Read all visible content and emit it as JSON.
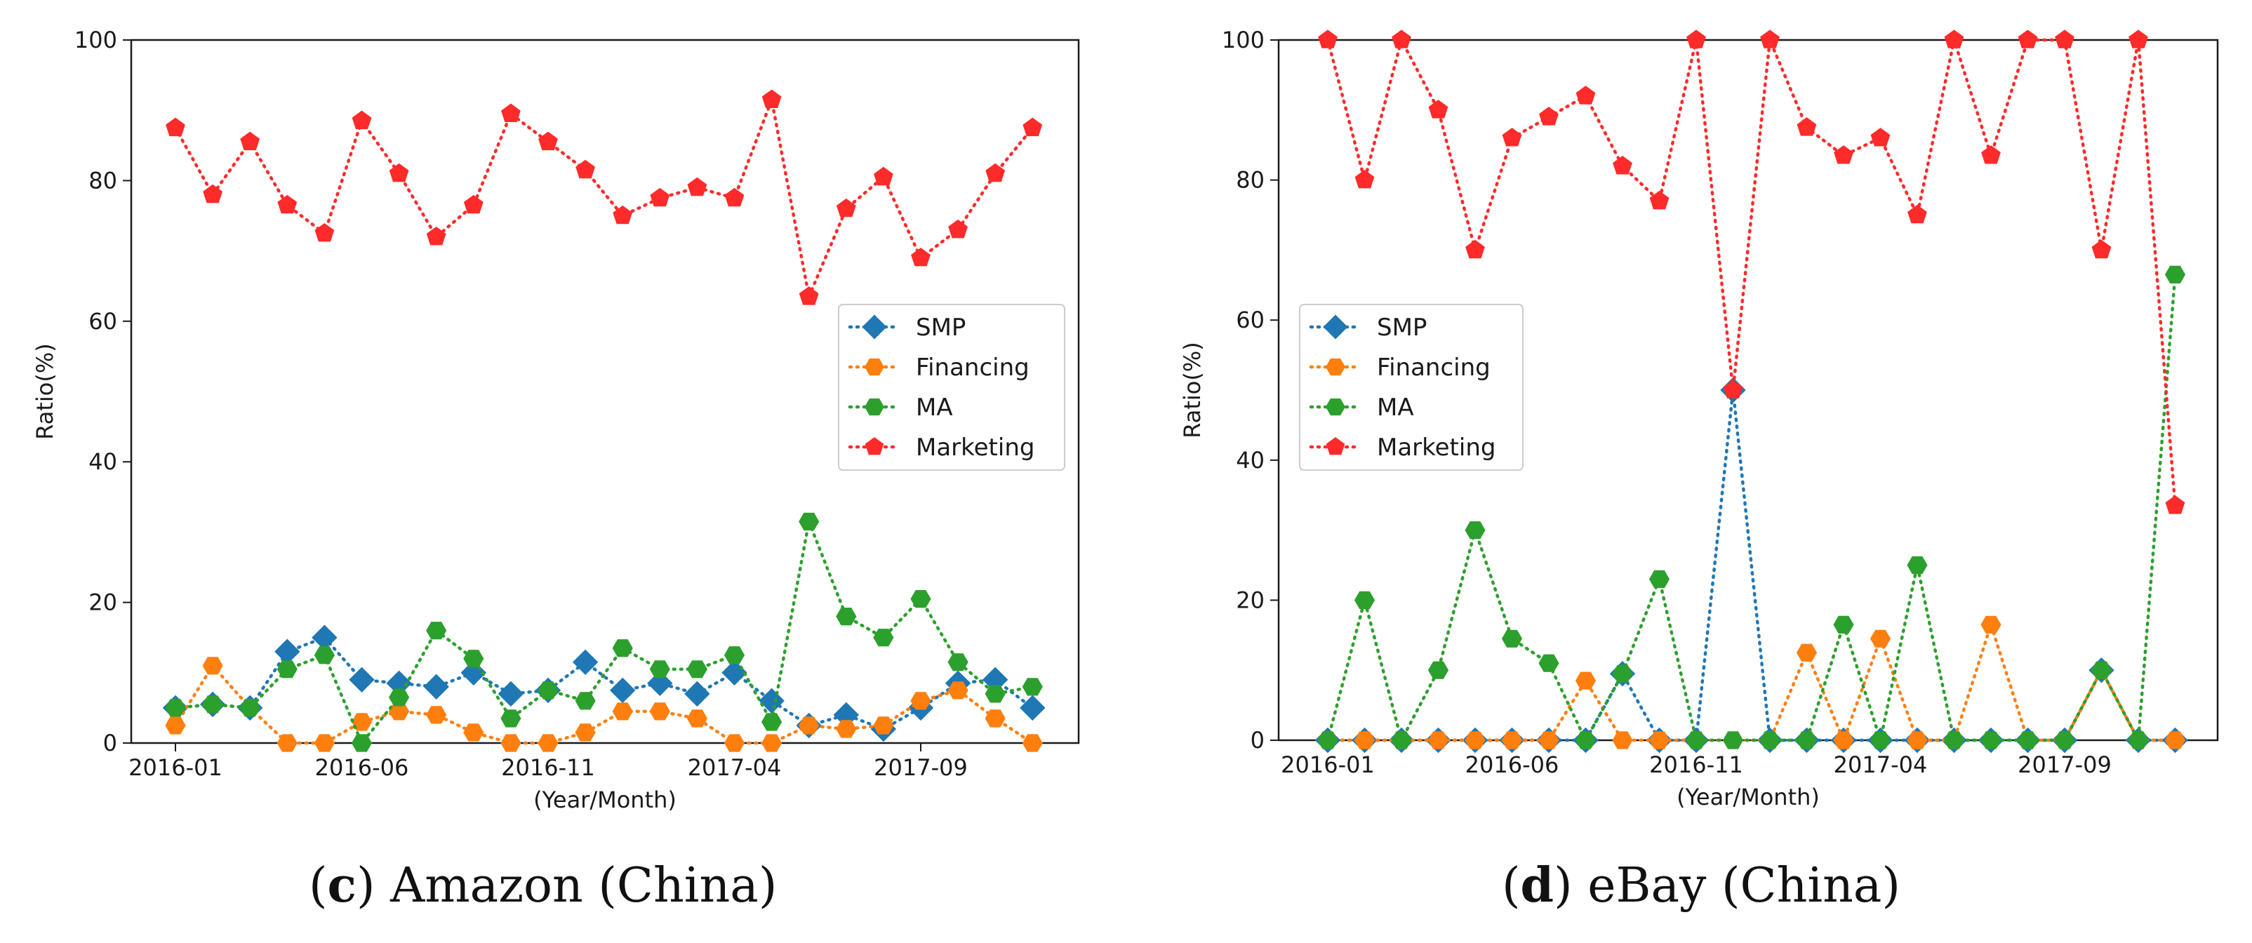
{
  "chart_data": [
    {
      "type": "line",
      "panel_letter": "c",
      "caption": "Amazon (China)",
      "xlabel": "(Year/Month)",
      "ylabel": "Ratio(%)",
      "ylim": [
        0,
        100
      ],
      "yticks": [
        0,
        20,
        40,
        60,
        80,
        100
      ],
      "x": [
        "2016-01",
        "2016-02",
        "2016-03",
        "2016-04",
        "2016-05",
        "2016-06",
        "2016-07",
        "2016-08",
        "2016-09",
        "2016-10",
        "2016-11",
        "2016-12",
        "2017-01",
        "2017-02",
        "2017-03",
        "2017-04",
        "2017-05",
        "2017-06",
        "2017-07",
        "2017-08",
        "2017-09",
        "2017-10",
        "2017-11",
        "2017-12"
      ],
      "xticks": [
        "2016-01",
        "2016-06",
        "2016-11",
        "2017-04",
        "2017-09"
      ],
      "legend_position": "center-right",
      "grid": false,
      "series": [
        {
          "name": "SMP",
          "color": "#1f77b4",
          "marker": "diamond",
          "values": [
            5,
            5.5,
            5,
            13,
            15,
            9,
            8.5,
            8,
            10,
            7,
            7.5,
            11.5,
            7.5,
            8.5,
            7,
            10,
            6,
            2.5,
            4,
            2,
            5,
            8.5,
            9,
            5
          ]
        },
        {
          "name": "Financing",
          "color": "#ff7f0e",
          "marker": "hexagon",
          "values": [
            2.5,
            11,
            5,
            0,
            0,
            3,
            4.5,
            4,
            1.5,
            0,
            0,
            1.5,
            4.5,
            4.5,
            3.5,
            0,
            0,
            2.5,
            2,
            2.5,
            6,
            7.5,
            3.5,
            0
          ]
        },
        {
          "name": "MA",
          "color": "#2ca02c",
          "marker": "hexagon",
          "values": [
            5,
            5.5,
            5,
            10.5,
            12.5,
            0,
            6.5,
            16,
            12,
            3.5,
            7.5,
            6,
            13.5,
            10.5,
            10.5,
            12.5,
            3,
            31.5,
            18,
            15,
            20.5,
            11.5,
            7,
            8
          ]
        },
        {
          "name": "Marketing",
          "color": "#ff2a2a",
          "marker": "pentagon",
          "values": [
            87.5,
            78,
            85.5,
            76.5,
            72.5,
            88.5,
            81,
            72,
            76.5,
            89.5,
            85.5,
            81.5,
            75,
            77.5,
            79,
            77.5,
            91.5,
            63.5,
            76,
            80.5,
            69,
            73,
            81,
            87.5
          ]
        }
      ]
    },
    {
      "type": "line",
      "panel_letter": "d",
      "caption": "eBay (China)",
      "xlabel": "(Year/Month)",
      "ylabel": "Ratio(%)",
      "ylim": [
        0,
        100
      ],
      "yticks": [
        0,
        20,
        40,
        60,
        80,
        100
      ],
      "x": [
        "2016-01",
        "2016-02",
        "2016-03",
        "2016-04",
        "2016-05",
        "2016-06",
        "2016-07",
        "2016-08",
        "2016-09",
        "2016-10",
        "2016-11",
        "2016-12",
        "2017-01",
        "2017-02",
        "2017-03",
        "2017-04",
        "2017-05",
        "2017-06",
        "2017-07",
        "2017-08",
        "2017-09",
        "2017-10",
        "2017-11",
        "2017-12"
      ],
      "xticks": [
        "2016-01",
        "2016-06",
        "2016-11",
        "2017-04",
        "2017-09"
      ],
      "legend_position": "center-left",
      "grid": false,
      "series": [
        {
          "name": "SMP",
          "color": "#1f77b4",
          "marker": "diamond",
          "values": [
            0,
            0,
            0,
            0,
            0,
            0,
            0,
            0,
            9.5,
            0,
            0,
            50,
            0,
            0,
            0,
            0,
            0,
            0,
            0,
            0,
            0,
            10,
            0,
            0
          ]
        },
        {
          "name": "Financing",
          "color": "#ff7f0e",
          "marker": "hexagon",
          "values": [
            0,
            0,
            0,
            0,
            0,
            0,
            0,
            8.5,
            0,
            0,
            0,
            0,
            0,
            12.5,
            0,
            14.5,
            0,
            0,
            16.5,
            0,
            0,
            10,
            0,
            0
          ]
        },
        {
          "name": "MA",
          "color": "#2ca02c",
          "marker": "hexagon",
          "values": [
            0,
            20,
            0,
            10,
            30,
            14.5,
            11,
            0,
            9.5,
            23,
            0,
            0,
            0,
            0,
            16.5,
            0,
            25,
            0,
            0,
            0,
            0,
            10,
            0,
            66.5
          ]
        },
        {
          "name": "Marketing",
          "color": "#ff2a2a",
          "marker": "pentagon",
          "values": [
            100,
            80,
            100,
            90,
            70,
            86,
            89,
            92,
            82,
            77,
            100,
            50,
            100,
            87.5,
            83.5,
            86,
            75,
            100,
            83.5,
            100,
            100,
            70,
            100,
            33.5
          ]
        }
      ]
    }
  ]
}
